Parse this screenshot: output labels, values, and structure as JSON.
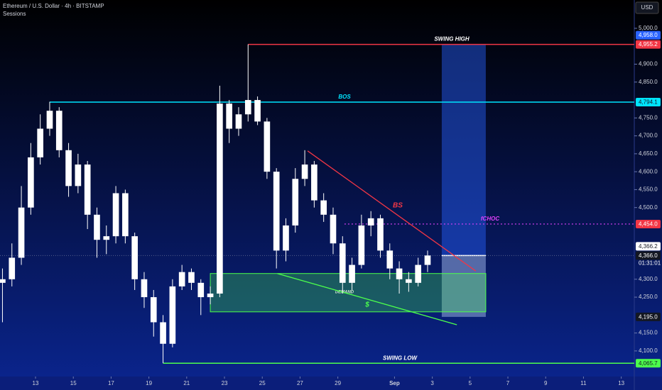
{
  "chart_data": {
    "type": "candlestick",
    "title": "Ethereum / U.S. Dollar · 4h · BITSTAMP",
    "subtitle": "Sessions",
    "currency": "USD",
    "xlim": [
      11.12,
      44.69
    ],
    "ylim": [
      3991,
      5079
    ],
    "xticks": [
      13,
      15,
      17,
      19,
      21,
      23,
      25,
      27,
      29,
      {
        "value": 32,
        "label": "Sep"
      },
      {
        "value": 34,
        "label": "3"
      },
      {
        "value": 36,
        "label": "5"
      },
      {
        "value": 38,
        "label": "7"
      },
      {
        "value": 40,
        "label": "9"
      },
      {
        "value": 42,
        "label": "11"
      },
      {
        "value": 44,
        "label": "13"
      }
    ],
    "yticks": [
      {
        "value": 5000,
        "label": "5,000.0"
      },
      {
        "value": 4900,
        "label": "4,900.0"
      },
      {
        "value": 4850,
        "label": "4,850.0"
      },
      {
        "value": 4750,
        "label": "4,750.0"
      },
      {
        "value": 4700,
        "label": "4,700.0"
      },
      {
        "value": 4650,
        "label": "4,650.0"
      },
      {
        "value": 4600,
        "label": "4,600.0"
      },
      {
        "value": 4550,
        "label": "4,550.0"
      },
      {
        "value": 4500,
        "label": "4,500.0"
      },
      {
        "value": 4300,
        "label": "4,300.0"
      },
      {
        "value": 4250,
        "label": "4,250.0"
      },
      {
        "value": 4150,
        "label": "4,150.0"
      },
      {
        "value": 4100,
        "label": "4,100.0"
      }
    ],
    "candle_color": "#ffffff",
    "candles": [
      {
        "x": 11.25,
        "open": 4290,
        "high": 4330,
        "low": 4180,
        "close": 4300
      },
      {
        "x": 11.75,
        "open": 4300,
        "high": 4400,
        "low": 4280,
        "close": 4360
      },
      {
        "x": 12.25,
        "open": 4360,
        "high": 4560,
        "low": 4340,
        "close": 4500
      },
      {
        "x": 12.75,
        "open": 4500,
        "high": 4680,
        "low": 4480,
        "close": 4640
      },
      {
        "x": 13.25,
        "open": 4640,
        "high": 4760,
        "low": 4620,
        "close": 4720
      },
      {
        "x": 13.75,
        "open": 4720,
        "high": 4795,
        "low": 4700,
        "close": 4770
      },
      {
        "x": 14.25,
        "open": 4770,
        "high": 4780,
        "low": 4640,
        "close": 4660
      },
      {
        "x": 14.75,
        "open": 4660,
        "high": 4680,
        "low": 4530,
        "close": 4560
      },
      {
        "x": 15.25,
        "open": 4560,
        "high": 4650,
        "low": 4540,
        "close": 4620
      },
      {
        "x": 15.75,
        "open": 4620,
        "high": 4630,
        "low": 4440,
        "close": 4480
      },
      {
        "x": 16.25,
        "open": 4480,
        "high": 4500,
        "low": 4360,
        "close": 4410
      },
      {
        "x": 16.75,
        "open": 4410,
        "high": 4450,
        "low": 4370,
        "close": 4420
      },
      {
        "x": 17.25,
        "open": 4420,
        "high": 4560,
        "low": 4400,
        "close": 4540
      },
      {
        "x": 17.75,
        "open": 4540,
        "high": 4550,
        "low": 4400,
        "close": 4420
      },
      {
        "x": 18.25,
        "open": 4420,
        "high": 4430,
        "low": 4270,
        "close": 4300
      },
      {
        "x": 18.75,
        "open": 4300,
        "high": 4320,
        "low": 4220,
        "close": 4250
      },
      {
        "x": 19.25,
        "open": 4250,
        "high": 4270,
        "low": 4140,
        "close": 4180
      },
      {
        "x": 19.75,
        "open": 4180,
        "high": 4200,
        "low": 4066,
        "close": 4120
      },
      {
        "x": 20.25,
        "open": 4120,
        "high": 4300,
        "low": 4110,
        "close": 4280
      },
      {
        "x": 20.75,
        "open": 4280,
        "high": 4340,
        "low": 4270,
        "close": 4320
      },
      {
        "x": 21.25,
        "open": 4320,
        "high": 4330,
        "low": 4270,
        "close": 4290
      },
      {
        "x": 21.75,
        "open": 4290,
        "high": 4300,
        "low": 4200,
        "close": 4250
      },
      {
        "x": 22.25,
        "open": 4250,
        "high": 4280,
        "low": 4230,
        "close": 4260
      },
      {
        "x": 22.75,
        "open": 4260,
        "high": 4840,
        "low": 4250,
        "close": 4790
      },
      {
        "x": 23.25,
        "open": 4790,
        "high": 4800,
        "low": 4680,
        "close": 4720
      },
      {
        "x": 23.75,
        "open": 4720,
        "high": 4780,
        "low": 4700,
        "close": 4760
      },
      {
        "x": 24.25,
        "open": 4760,
        "high": 4955.2,
        "low": 4740,
        "close": 4800
      },
      {
        "x": 24.75,
        "open": 4800,
        "high": 4810,
        "low": 4730,
        "close": 4740
      },
      {
        "x": 25.25,
        "open": 4740,
        "high": 4750,
        "low": 4580,
        "close": 4600
      },
      {
        "x": 25.75,
        "open": 4600,
        "high": 4610,
        "low": 4330,
        "close": 4380
      },
      {
        "x": 26.25,
        "open": 4380,
        "high": 4470,
        "low": 4350,
        "close": 4450
      },
      {
        "x": 26.75,
        "open": 4450,
        "high": 4610,
        "low": 4430,
        "close": 4580
      },
      {
        "x": 27.25,
        "open": 4580,
        "high": 4660,
        "low": 4560,
        "close": 4620
      },
      {
        "x": 27.75,
        "open": 4620,
        "high": 4630,
        "low": 4500,
        "close": 4520
      },
      {
        "x": 28.25,
        "open": 4520,
        "high": 4540,
        "low": 4460,
        "close": 4480
      },
      {
        "x": 28.75,
        "open": 4480,
        "high": 4500,
        "low": 4370,
        "close": 4400
      },
      {
        "x": 29.25,
        "open": 4400,
        "high": 4420,
        "low": 4260,
        "close": 4290
      },
      {
        "x": 29.75,
        "open": 4290,
        "high": 4360,
        "low": 4270,
        "close": 4340
      },
      {
        "x": 30.25,
        "open": 4340,
        "high": 4480,
        "low": 4330,
        "close": 4450
      },
      {
        "x": 30.75,
        "open": 4450,
        "high": 4490,
        "low": 4420,
        "close": 4470
      },
      {
        "x": 31.25,
        "open": 4470,
        "high": 4480,
        "low": 4360,
        "close": 4380
      },
      {
        "x": 31.75,
        "open": 4380,
        "high": 4400,
        "low": 4300,
        "close": 4330
      },
      {
        "x": 32.25,
        "open": 4330,
        "high": 4350,
        "low": 4260,
        "close": 4300
      },
      {
        "x": 32.75,
        "open": 4300,
        "high": 4320,
        "low": 4265,
        "close": 4290
      },
      {
        "x": 33.25,
        "open": 4290,
        "high": 4360,
        "low": 4280,
        "close": 4340
      },
      {
        "x": 33.75,
        "open": 4340,
        "high": 4380,
        "low": 4320,
        "close": 4366.2
      }
    ],
    "levels": [
      {
        "label": "SWING HIGH",
        "value": 4955.2,
        "from": 24.25,
        "color": "#f23645",
        "dash": false
      },
      {
        "label": "BOS",
        "value": 4794.1,
        "from": 13.75,
        "color": "#00e5ff",
        "dash": false
      },
      {
        "label": "fCHOC",
        "value": 4454.0,
        "from": 29.35,
        "color": "#e040fb",
        "dash": true
      },
      {
        "label": "SWING LOW",
        "value": 4065.7,
        "from": 19.75,
        "color": "#4cff4c",
        "dash": false
      }
    ],
    "zones": [
      {
        "label": "DEMAND",
        "x": [
          22.25,
          36.83
        ],
        "y": [
          4209,
          4316
        ],
        "color": "#4cff4c"
      }
    ],
    "trendlines": [
      {
        "label": "BS",
        "x": [
          27.4,
          36.3
        ],
        "y": [
          4658,
          4323
        ],
        "color": "#f23645"
      },
      {
        "label": "$",
        "x": [
          25.8,
          35.3
        ],
        "y": [
          4316,
          4173
        ],
        "color": "#4cff4c"
      }
    ],
    "projection": {
      "x": [
        34.5,
        36.83
      ],
      "y": [
        4195,
        4955.2
      ],
      "entry": 4366.2,
      "color": "#2962ff"
    },
    "price_tags": [
      {
        "label": "4,958.0",
        "value": 4958.0,
        "color": "#2962ff",
        "text_color": "#ffffff"
      },
      {
        "label": "4,955.2",
        "value": 4955.2,
        "color": "#f23645",
        "text_color": "#ffffff"
      },
      {
        "label": "4,794.1",
        "value": 4794.1,
        "color": "#00e5ff",
        "text_color": "#131722"
      },
      {
        "label": "4,454.0",
        "value": 4454.0,
        "color": "#f23645",
        "text_color": "#ffffff"
      },
      {
        "label": "4,366.2",
        "value": 4366.2,
        "color": "#ffffff",
        "text_color": "#131722"
      },
      {
        "label": "4,366.0",
        "value": 4366.0,
        "color": "#131722",
        "text_color": "#ffffff"
      },
      {
        "label": "4,195.0",
        "value": 4195.0,
        "color": "#131722",
        "text_color": "#ffffff"
      },
      {
        "label": "4,065.7",
        "value": 4065.7,
        "color": "#4cff4c",
        "text_color": "#131722"
      }
    ],
    "countdown": "01:31:01"
  }
}
